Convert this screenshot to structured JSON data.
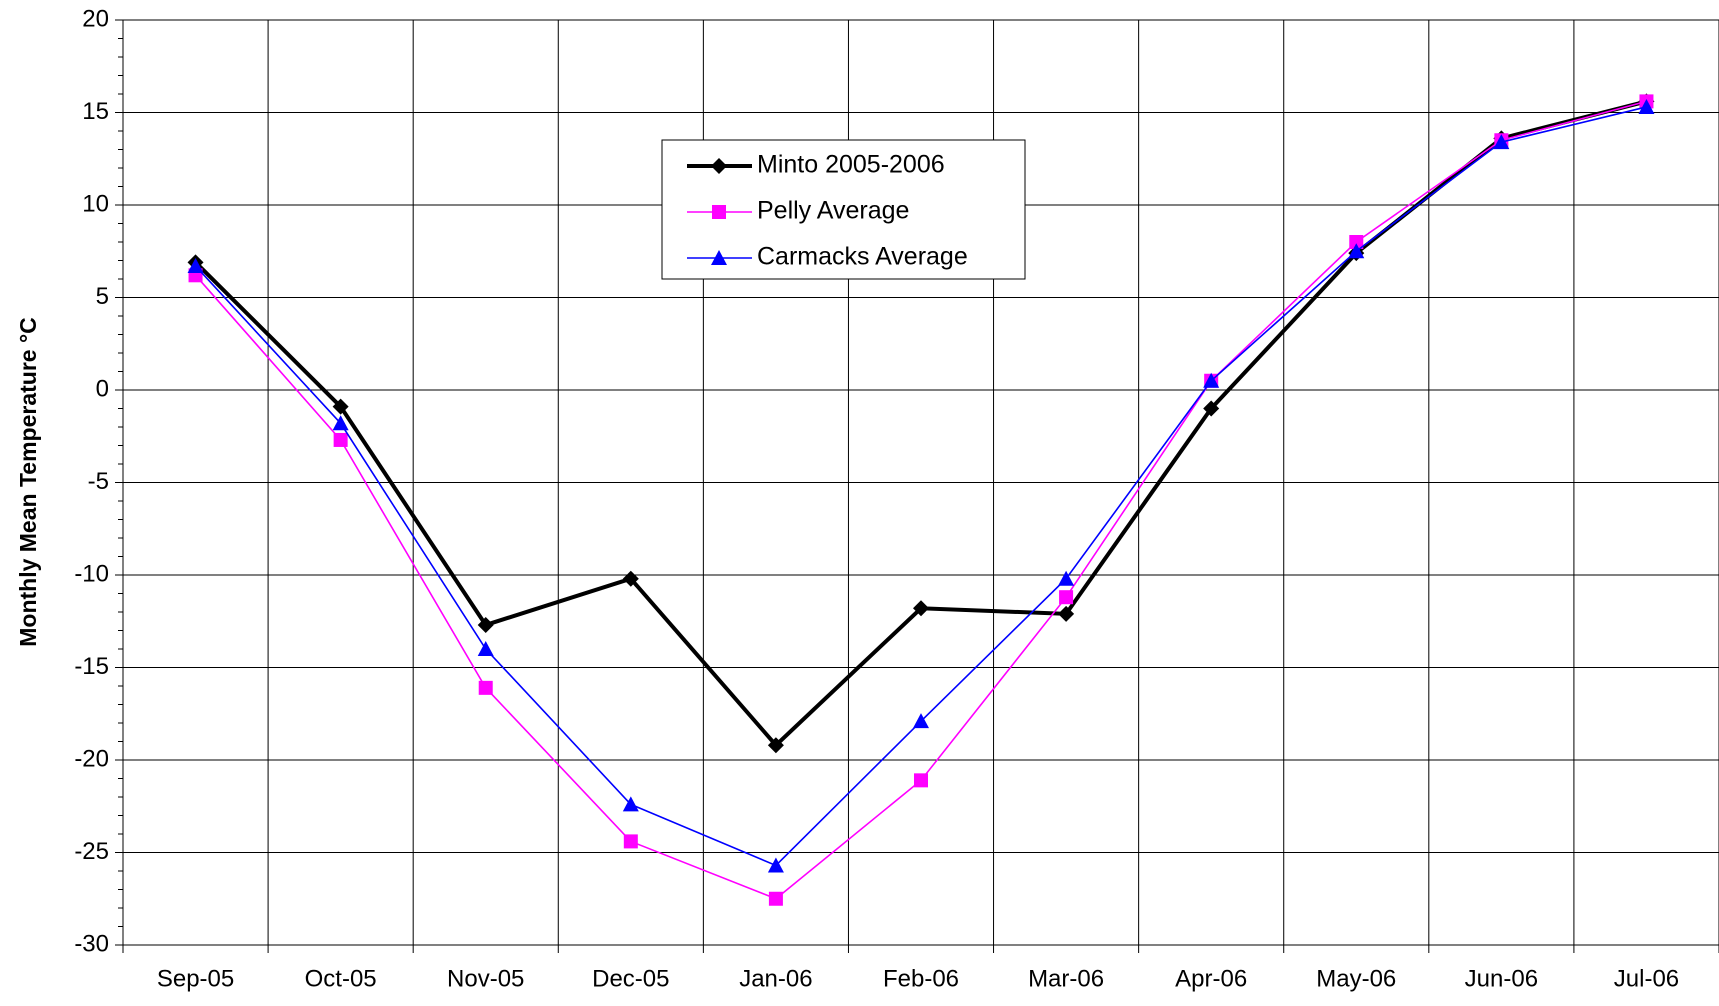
{
  "chart_data": {
    "type": "line",
    "y_label": "Monthly Mean Temperature °C",
    "categories": [
      "Sep-05",
      "Oct-05",
      "Nov-05",
      "Dec-05",
      "Jan-06",
      "Feb-06",
      "Mar-06",
      "Apr-06",
      "May-06",
      "Jun-06",
      "Jul-06"
    ],
    "series": [
      {
        "name": "Minto 2005-2006",
        "color": "#000000",
        "marker": "diamond",
        "values": [
          6.9,
          -0.9,
          -12.7,
          -10.2,
          -19.2,
          -11.8,
          -12.1,
          -1.0,
          7.4,
          13.6,
          15.6
        ]
      },
      {
        "name": "Pelly Average",
        "color": "#ff00ff",
        "marker": "square",
        "values": [
          6.2,
          -2.7,
          -16.1,
          -24.4,
          -27.5,
          -21.1,
          -11.2,
          0.5,
          8.0,
          13.5,
          15.6
        ]
      },
      {
        "name": "Carmacks Average",
        "color": "#0000ff",
        "marker": "triangle",
        "values": [
          6.7,
          -1.8,
          -14.0,
          -22.4,
          -25.7,
          -17.9,
          -10.2,
          0.5,
          7.5,
          13.4,
          15.3
        ]
      }
    ],
    "ylim": [
      -30,
      20
    ],
    "yticks": [
      -30,
      -25,
      -20,
      -15,
      -10,
      -5,
      0,
      5,
      10,
      15,
      20
    ],
    "grid": true
  }
}
